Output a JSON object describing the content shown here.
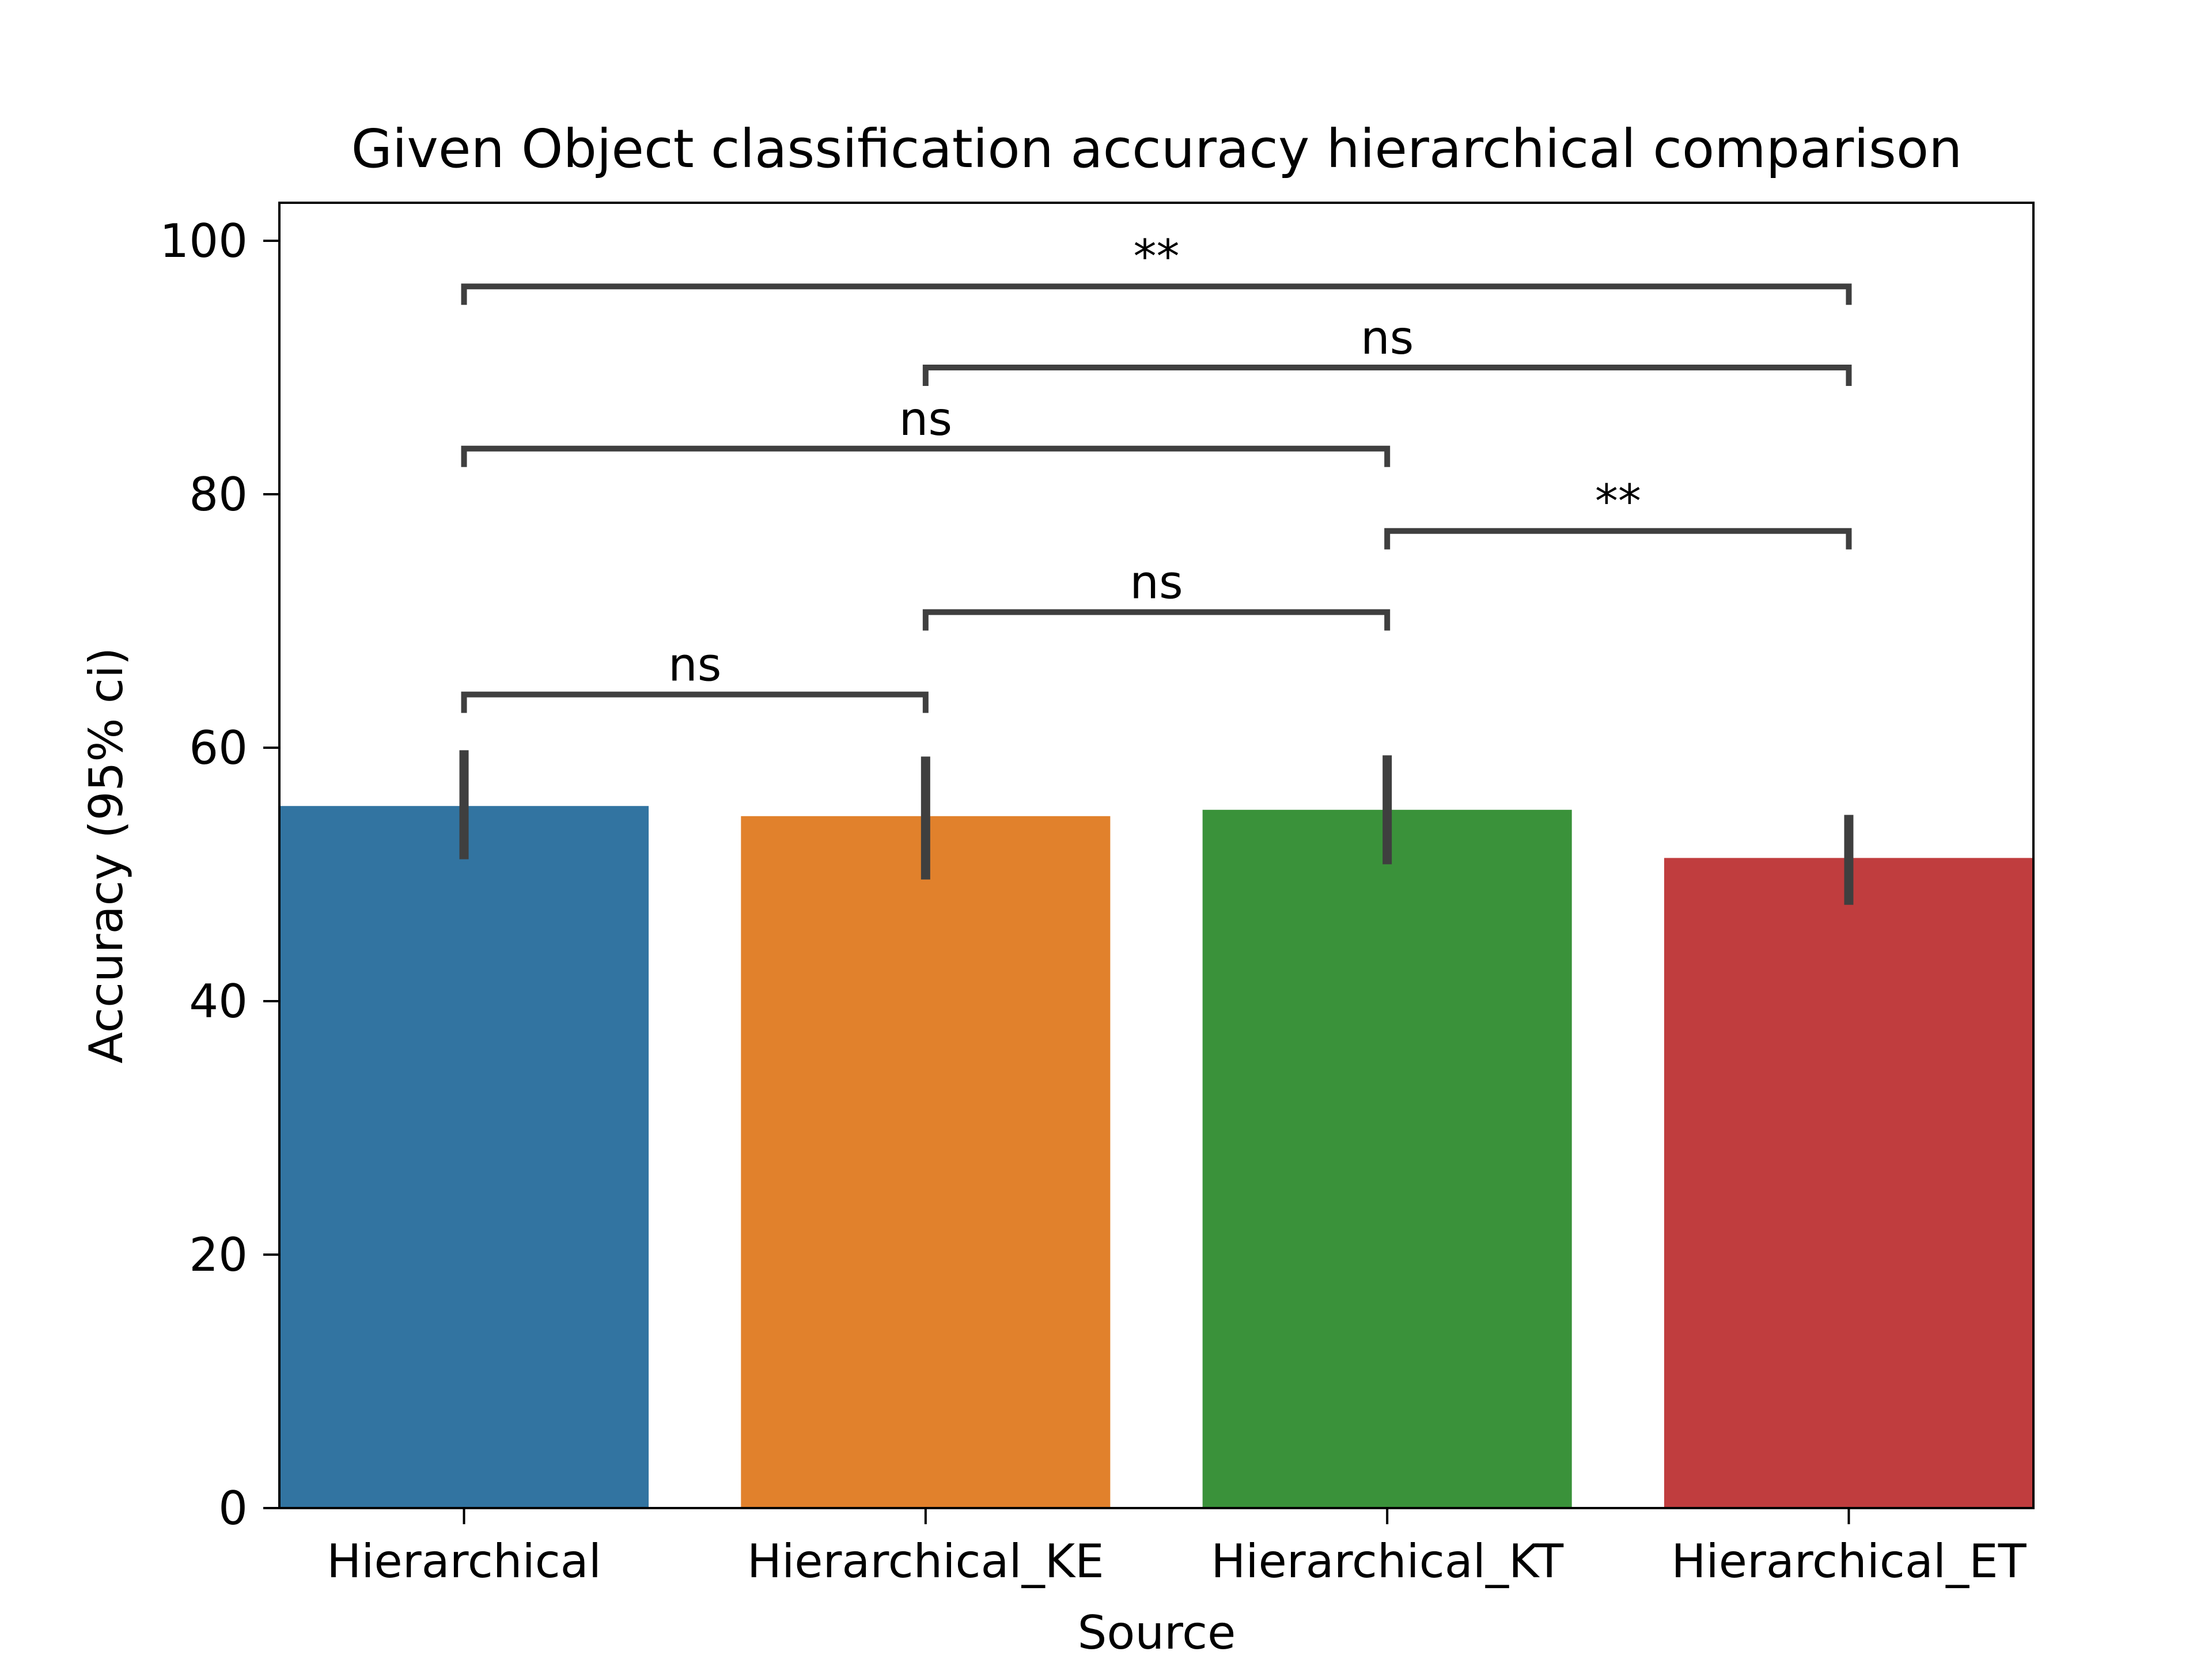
{
  "chart_data": {
    "type": "bar",
    "title": "Given Object classification accuracy hierarchical comparison",
    "xlabel": "Source",
    "ylabel": "Accuracy (95% ci)",
    "categories": [
      "Hierarchical",
      "Hierarchical_KE",
      "Hierarchical_KT",
      "Hierarchical_ET"
    ],
    "values": [
      55.4,
      54.6,
      55.1,
      51.3
    ],
    "ci_low": [
      51.2,
      49.6,
      50.8,
      47.6
    ],
    "ci_high": [
      59.8,
      59.3,
      59.4,
      54.7
    ],
    "colors": [
      "#3274a1",
      "#e1812c",
      "#3a923a",
      "#c03d3e"
    ],
    "ylim": [
      0,
      103
    ],
    "yticks": [
      0,
      20,
      40,
      60,
      80,
      100
    ],
    "grid": false,
    "legend": "none",
    "comparisons": [
      {
        "from": 0,
        "to": 1,
        "y": 64.2,
        "label": "ns"
      },
      {
        "from": 1,
        "to": 2,
        "y": 70.7,
        "label": "ns"
      },
      {
        "from": 2,
        "to": 3,
        "y": 77.1,
        "label": "**"
      },
      {
        "from": 0,
        "to": 2,
        "y": 83.6,
        "label": "ns"
      },
      {
        "from": 1,
        "to": 3,
        "y": 90.0,
        "label": "ns"
      },
      {
        "from": 0,
        "to": 3,
        "y": 96.4,
        "label": "**"
      }
    ]
  }
}
